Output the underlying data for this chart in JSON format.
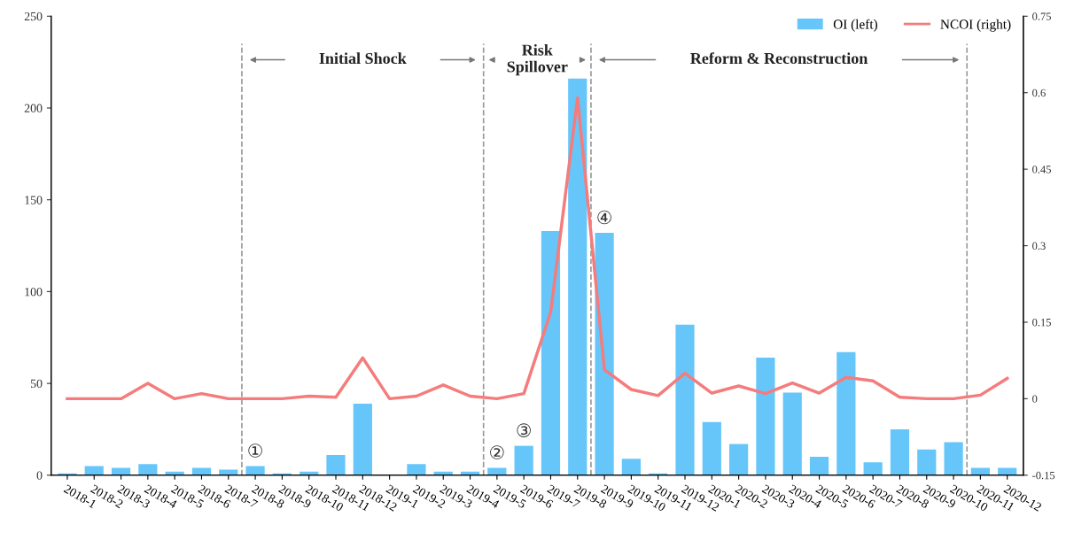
{
  "chart_data": {
    "type": "bar",
    "categories": [
      "2018-1",
      "2018-2",
      "2018-3",
      "2018-4",
      "2018-5",
      "2018-6",
      "2018-7",
      "2018-8",
      "2018-9",
      "2018-10",
      "2018-11",
      "2018-12",
      "2019-1",
      "2019-2",
      "2019-3",
      "2019-4",
      "2019-5",
      "2019-6",
      "2019-7",
      "2019-8",
      "2019-9",
      "2019-10",
      "2019-11",
      "2019-12",
      "2020-1",
      "2020-2",
      "2020-3",
      "2020-4",
      "2020-5",
      "2020-6",
      "2020-7",
      "2020-8",
      "2020-9",
      "2020-10",
      "2020-11",
      "2020-12"
    ],
    "series": [
      {
        "name": "OI (left)",
        "color": "#66c6fa",
        "values": [
          1,
          5,
          4,
          6,
          2,
          4,
          3,
          5,
          1,
          2,
          11,
          39,
          0,
          6,
          2,
          2,
          4,
          16,
          133,
          216,
          132,
          9,
          1,
          82,
          29,
          17,
          64,
          45,
          10,
          67,
          7,
          25,
          14,
          18,
          4,
          4
        ]
      },
      {
        "name": "NCOI (right)",
        "type": "line",
        "axis": "y2",
        "color": "#f47c7c",
        "values": [
          0,
          0,
          0,
          0.03,
          0,
          0.01,
          0,
          0,
          0,
          0.005,
          0.003,
          0.08,
          0,
          0.005,
          0.027,
          0.005,
          0,
          0.01,
          0.17,
          0.59,
          0.057,
          0.018,
          0.006,
          0.05,
          0.011,
          0.025,
          0.01,
          0.031,
          0.011,
          0.042,
          0.035,
          0.003,
          0,
          0,
          0.007,
          0.04
        ]
      }
    ],
    "ylim": [
      0,
      250
    ],
    "yticks": [
      0,
      50,
      100,
      150,
      200,
      250
    ],
    "y2lim": [
      -0.15,
      0.75
    ],
    "y2ticks": [
      -0.15,
      0,
      0.15,
      0.3,
      0.45,
      0.6,
      0.75
    ],
    "annotations": [
      "Initial Shock",
      "Risk\nSpillover",
      "Reform & Reconstruction",
      {
        "text": "①",
        "x": "2018-8",
        "y": 5
      },
      {
        "text": "②",
        "x": "2019-5",
        "y": 4
      },
      {
        "text": "③",
        "x": "2019-6",
        "y": 16
      },
      {
        "text": "④",
        "x": "2019-9",
        "y": 132
      }
    ],
    "grid": false,
    "legend": "top right",
    "line_style": "solid"
  }
}
